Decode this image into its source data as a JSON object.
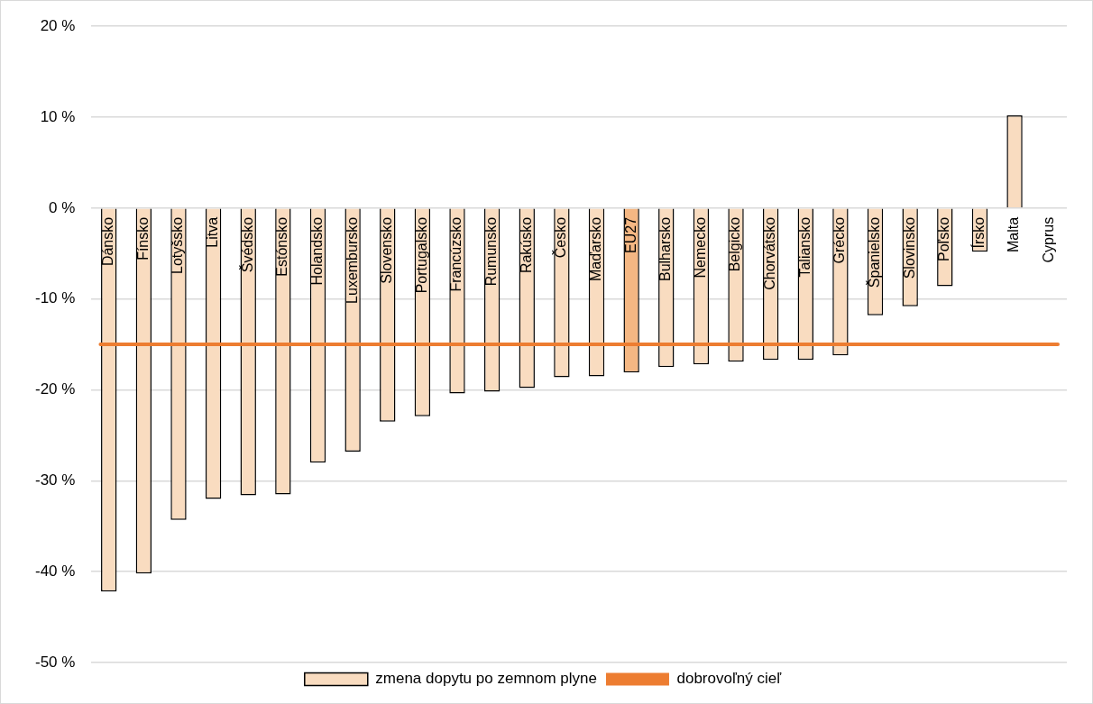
{
  "chart_data": {
    "type": "bar",
    "categories": [
      "Dánsko",
      "Fínsko",
      "Lotyšsko",
      "Litva",
      "Švédsko",
      "Estónsko",
      "Holandsko",
      "Luxembursko",
      "Slovensko",
      "Portugalsko",
      "Francúzsko",
      "Rumunsko",
      "Rakúsko",
      "Česko",
      "Maďarsko",
      "EU27",
      "Bulharsko",
      "Nemecko",
      "Belgicko",
      "Chorvátsko",
      "Taliansko",
      "Grécko",
      "Španielsko",
      "Slovinsko",
      "Poľsko",
      "Írsko",
      "Malta",
      "Cyprus"
    ],
    "series": [
      {
        "name": "zmena dopytu po zemnom plyne",
        "color": "#f9dcc0",
        "colors": [
          "#f9dcc0",
          "#f9dcc0",
          "#f9dcc0",
          "#f9dcc0",
          "#f9dcc0",
          "#f9dcc0",
          "#f9dcc0",
          "#f9dcc0",
          "#f9dcc0",
          "#f9dcc0",
          "#f9dcc0",
          "#f9dcc0",
          "#f9dcc0",
          "#f9dcc0",
          "#f9dcc0",
          "#f4b783",
          "#f9dcc0",
          "#f9dcc0",
          "#f9dcc0",
          "#f9dcc0",
          "#f9dcc0",
          "#f9dcc0",
          "#f9dcc0",
          "#f9dcc0",
          "#f9dcc0",
          "#f9dcc0",
          "#f9dcc0",
          "#f9dcc0"
        ],
        "values": [
          -42.2,
          -40.2,
          -34.3,
          -32.0,
          -31.6,
          -31.5,
          -28.0,
          -26.8,
          -23.5,
          -22.9,
          -20.4,
          -20.2,
          -19.8,
          -18.6,
          -18.5,
          -18.1,
          -17.5,
          -17.2,
          -16.9,
          -16.7,
          -16.7,
          -16.2,
          -11.8,
          -10.8,
          -8.6,
          -4.8,
          10.2,
          null
        ]
      }
    ],
    "ref_lines": [
      {
        "axis": "y",
        "value": -15,
        "label": "dobrovoľný cieľ",
        "color": "#ed7d31"
      }
    ],
    "ylim": [
      -50,
      20
    ],
    "yticks": [
      {
        "value": 20,
        "label": "20 %"
      },
      {
        "value": 10,
        "label": "10 %"
      },
      {
        "value": 0,
        "label": "0 %"
      },
      {
        "value": -10,
        "label": "-10 %"
      },
      {
        "value": -20,
        "label": "-20 %"
      },
      {
        "value": -30,
        "label": "-30 %"
      },
      {
        "value": -40,
        "label": "-40 %"
      },
      {
        "value": -50,
        "label": "-50 %"
      }
    ],
    "grid": "y",
    "legend": "bottom"
  }
}
